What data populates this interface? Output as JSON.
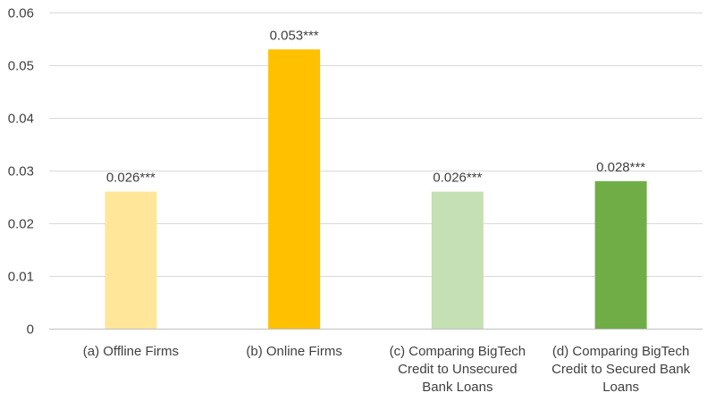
{
  "chart_data": {
    "type": "bar",
    "title": "",
    "xlabel": "",
    "ylabel": "",
    "ylim": [
      0,
      0.06
    ],
    "yticks": [
      0,
      0.01,
      0.02,
      0.03,
      0.04,
      0.05,
      0.06
    ],
    "ytick_labels": [
      "0",
      "0.01",
      "0.02",
      "0.03",
      "0.04",
      "0.05",
      "0.06"
    ],
    "grid": true,
    "legend": "none",
    "categories": [
      [
        "(a) Offline Firms"
      ],
      [
        "(b) Online Firms"
      ],
      [
        "(c) Comparing BigTech",
        "Credit to Unsecured",
        "Bank Loans"
      ],
      [
        "(d) Comparing BigTech",
        "Credit to Secured Bank",
        "Loans"
      ]
    ],
    "values": [
      0.026,
      0.053,
      0.026,
      0.028
    ],
    "data_labels": [
      "0.026***",
      "0.053***",
      "0.026***",
      "0.028***"
    ],
    "colors": [
      "#ffe699",
      "#ffc000",
      "#c5e0b4",
      "#70ad47"
    ]
  }
}
